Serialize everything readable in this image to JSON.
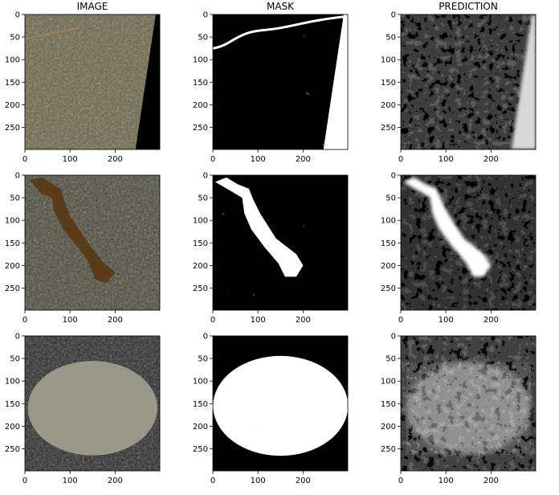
{
  "chart_data": {
    "type": "image-grid",
    "rows": 3,
    "cols": 3,
    "column_titles": [
      "IMAGE",
      "MASK",
      "PREDICTION"
    ],
    "x_ticks": [
      "0",
      "100",
      "200"
    ],
    "y_ticks": [
      "0",
      "50",
      "100",
      "150",
      "200",
      "250"
    ],
    "x_range": [
      0,
      299
    ],
    "y_range": [
      0,
      299
    ],
    "y_inverted": true,
    "panels": [
      {
        "row": 0,
        "col": 0,
        "kind": "image",
        "content": "rocky-terrain"
      },
      {
        "row": 0,
        "col": 1,
        "kind": "mask",
        "content": "river-streak"
      },
      {
        "row": 0,
        "col": 2,
        "kind": "prediction",
        "content": "dark-with-wedge"
      },
      {
        "row": 1,
        "col": 0,
        "kind": "image",
        "content": "lake-valley"
      },
      {
        "row": 1,
        "col": 1,
        "kind": "mask",
        "content": "lake-shape"
      },
      {
        "row": 1,
        "col": 2,
        "kind": "prediction",
        "content": "lake-shape"
      },
      {
        "row": 2,
        "col": 0,
        "kind": "image",
        "content": "oval-lake"
      },
      {
        "row": 2,
        "col": 1,
        "kind": "mask",
        "content": "oval"
      },
      {
        "row": 2,
        "col": 2,
        "kind": "prediction",
        "content": "oval-textured"
      }
    ]
  }
}
